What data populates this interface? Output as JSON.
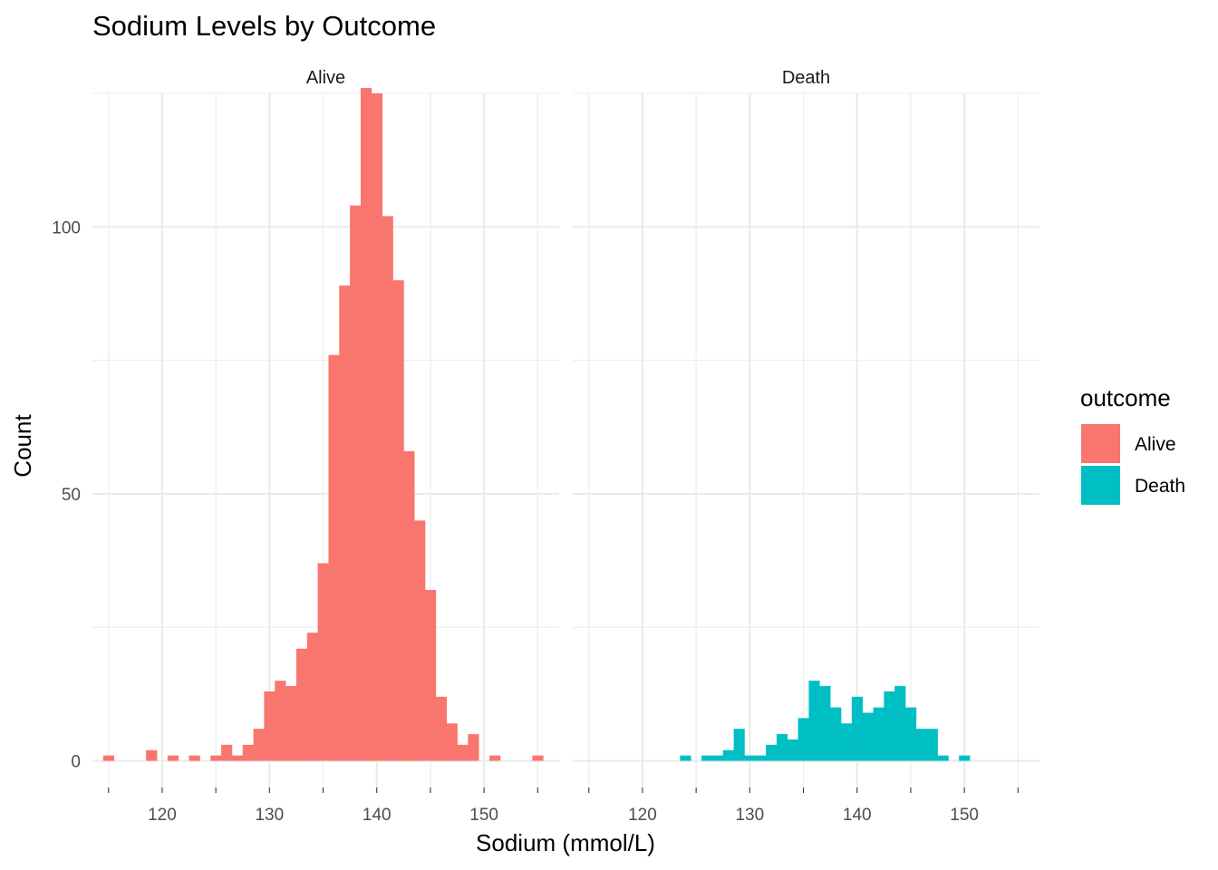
{
  "chart_data": {
    "type": "bar",
    "title": "Sodium Levels by Outcome",
    "xlabel": "Sodium (mmol/L)",
    "ylabel": "Count",
    "xlim": [
      113.5,
      157
    ],
    "ylim": [
      -5,
      125
    ],
    "x_ticks": [
      120,
      130,
      140,
      150
    ],
    "y_ticks": [
      0,
      50,
      100
    ],
    "grid": true,
    "legend": {
      "title": "outcome",
      "position": "right",
      "entries": [
        {
          "label": "Alive",
          "color": "#F8766D"
        },
        {
          "label": "Death",
          "color": "#00BFC4"
        }
      ]
    },
    "bin_width": 1,
    "bin_starts": [
      114.5,
      115.5,
      116.5,
      117.5,
      118.5,
      119.5,
      120.5,
      121.5,
      122.5,
      123.5,
      124.5,
      125.5,
      126.5,
      127.5,
      128.5,
      129.5,
      130.5,
      131.5,
      132.5,
      133.5,
      134.5,
      135.5,
      136.5,
      137.5,
      138.5,
      139.5,
      140.5,
      141.5,
      142.5,
      143.5,
      144.5,
      145.5,
      146.5,
      147.5,
      148.5,
      149.5,
      150.5,
      151.5,
      152.5,
      153.5,
      154.5
    ],
    "panels": [
      {
        "name": "Alive",
        "color": "#F8766D",
        "counts": [
          1,
          0,
          0,
          0,
          2,
          0,
          1,
          0,
          1,
          0,
          1,
          3,
          1,
          3,
          6,
          13,
          15,
          14,
          21,
          24,
          37,
          76,
          89,
          104,
          126,
          125,
          102,
          90,
          58,
          45,
          32,
          12,
          7,
          3,
          5,
          0,
          1,
          0,
          0,
          0,
          1
        ]
      },
      {
        "name": "Death",
        "color": "#00BFC4",
        "counts": [
          0,
          0,
          0,
          0,
          0,
          0,
          0,
          0,
          0,
          1,
          0,
          1,
          1,
          2,
          6,
          1,
          1,
          3,
          5,
          4,
          8,
          15,
          14,
          10,
          7,
          12,
          9,
          10,
          13,
          14,
          10,
          6,
          6,
          1,
          0,
          1,
          0,
          0,
          0,
          0,
          0
        ]
      }
    ]
  }
}
